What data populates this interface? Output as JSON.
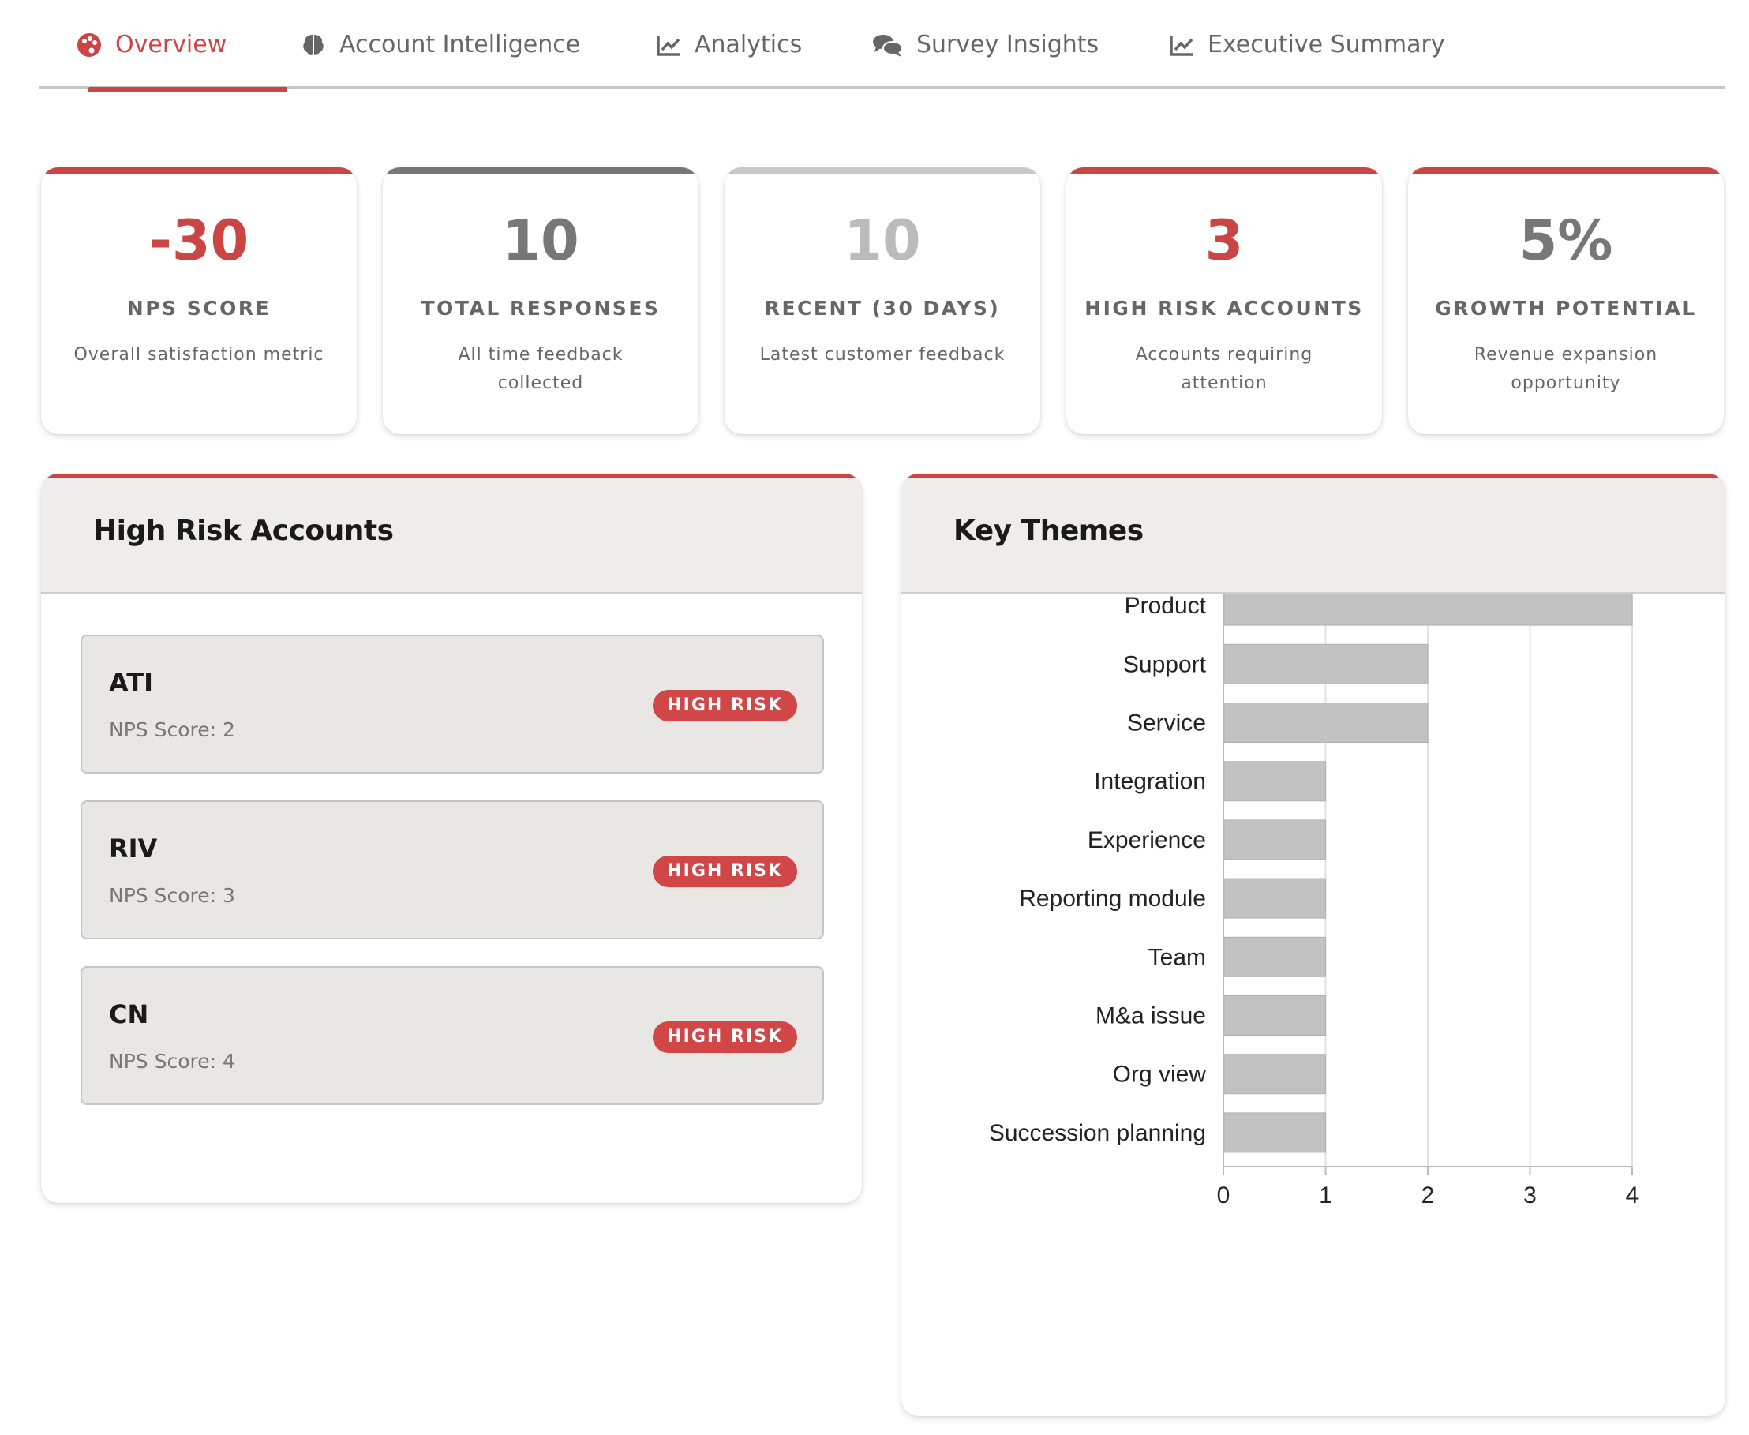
{
  "tabs": [
    {
      "label": "Overview",
      "icon": "palette-icon",
      "active": true
    },
    {
      "label": "Account Intelligence",
      "icon": "brain-icon",
      "active": false
    },
    {
      "label": "Analytics",
      "icon": "line-chart-icon",
      "active": false
    },
    {
      "label": "Survey Insights",
      "icon": "comments-icon",
      "active": false
    },
    {
      "label": "Executive Summary",
      "icon": "line-chart-icon",
      "active": false
    }
  ],
  "colors": {
    "accent": "#cc4444",
    "muted_gray": "#777777",
    "light_gray": "#bbbbbb",
    "bar_fill": "#c2c2c2"
  },
  "stats": [
    {
      "value": "-30",
      "label": "NPS SCORE",
      "desc": "Overall satisfaction metric",
      "accent": "#cc4444",
      "value_color": "#cc4444"
    },
    {
      "value": "10",
      "label": "TOTAL RESPONSES",
      "desc": "All time feedback collected",
      "accent": "#777777",
      "value_color": "#777777"
    },
    {
      "value": "10",
      "label": "RECENT (30 DAYS)",
      "desc": "Latest customer feedback",
      "accent": "#c8c8c8",
      "value_color": "#bbbbbb"
    },
    {
      "value": "3",
      "label": "HIGH RISK ACCOUNTS",
      "desc": "Accounts requiring attention",
      "accent": "#cc4444",
      "value_color": "#cc4444"
    },
    {
      "value": "5%",
      "label": "GROWTH POTENTIAL",
      "desc": "Revenue expansion opportunity",
      "accent": "#cc4444",
      "value_color": "#777777"
    }
  ],
  "high_risk": {
    "title": "High Risk Accounts",
    "accounts": [
      {
        "name": "ATI",
        "score": "NPS Score: 2",
        "badge": "HIGH RISK"
      },
      {
        "name": "RIV",
        "score": "NPS Score: 3",
        "badge": "HIGH RISK"
      },
      {
        "name": "CN",
        "score": "NPS Score: 4",
        "badge": "HIGH RISK"
      }
    ]
  },
  "themes": {
    "title": "Key Themes"
  },
  "chart_data": {
    "type": "bar",
    "orientation": "horizontal",
    "categories": [
      "Product",
      "Support",
      "Service",
      "Integration",
      "Experience",
      "Reporting module",
      "Team",
      "M&a issue",
      "Org view",
      "Succession planning"
    ],
    "values": [
      4,
      2,
      2,
      1,
      1,
      1,
      1,
      1,
      1,
      1
    ],
    "xlim": [
      0,
      4
    ],
    "xticks": [
      "0",
      "1",
      "2",
      "3",
      "4"
    ],
    "grid": true,
    "legend": false
  }
}
